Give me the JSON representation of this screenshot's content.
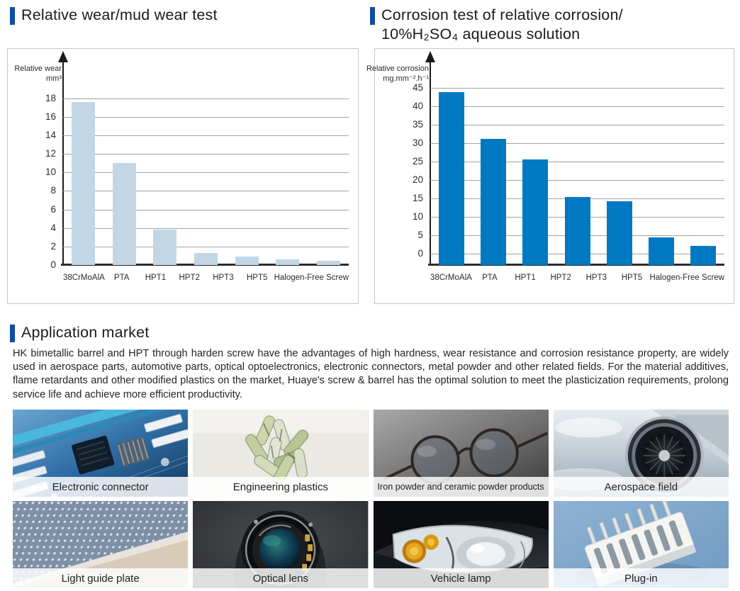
{
  "accent_color": "#0d4da2",
  "charts_section": {
    "left_title": "Relative wear/mud wear test",
    "right_title_line1": "Corrosion test of relative corrosion/",
    "right_title_line2": "10%H₂SO₄ aqueous solution"
  },
  "chart_data": [
    {
      "type": "bar",
      "title": "Relative wear/mud wear test",
      "ylabel_lines": [
        "Relative wear",
        "mm³"
      ],
      "categories": [
        "38CrMoAlA",
        "PTA",
        "HPT1",
        "HPT2",
        "HPT3",
        "HPT5",
        "Halogen-Free Screw"
      ],
      "values": [
        17.6,
        11.0,
        3.8,
        1.3,
        0.9,
        0.65,
        0.45
      ],
      "yticks": [
        0,
        2,
        4,
        6,
        8,
        10,
        12,
        14,
        16,
        18
      ],
      "ylim": [
        0,
        19.5
      ],
      "grid": true,
      "legend": "none",
      "bar_color": "#c2d6e5",
      "grid_color": "#a3a3a3",
      "axis_color": "#1b1b1b"
    },
    {
      "type": "bar",
      "title": "Corrosion test of relative corrosion/10%H₂SO₄ aqueous solution",
      "ylabel_lines": [
        "Relative corrosion",
        "mg.mm⁻².h⁻¹"
      ],
      "categories": [
        "38CrMoAlA",
        "PTA",
        "HPT1",
        "HPT2",
        "HPT3",
        "HPT5",
        "Halogen-Free Screw"
      ],
      "values": [
        43.8,
        31.2,
        25.6,
        15.4,
        14.3,
        4.5,
        2.2
      ],
      "yticks": [
        0,
        5,
        10,
        15,
        20,
        25,
        30,
        35,
        40,
        45
      ],
      "ylim": [
        -3,
        46
      ],
      "grid": true,
      "legend": "none",
      "bar_color": "#0079c2",
      "grid_color": "#a3a3a3",
      "axis_color": "#1b1b1b"
    }
  ],
  "application": {
    "heading": "Application market",
    "paragraph": "HK bimetallic barrel and HPT through harden screw have the advantages of high hardness, wear resistance and corrosion resistance property, are widely used in aerospace parts, automotive parts, optical optoelectronics, electronic connectors, metal powder and other related fields. For the material additives, flame retardants and other modified plastics on the market, Huaye's screw & barrel has the optimal solution to meet the plasticization requirements, prolong service life and achieve more efficient productivity.",
    "tiles": [
      {
        "caption": "Electronic connector",
        "image": "circuit-board-photo"
      },
      {
        "caption": "Engineering plastics",
        "image": "plastic-pellets-photo"
      },
      {
        "caption": "Iron powder and ceramic powder products",
        "image": "eyeglasses-on-metal-photo"
      },
      {
        "caption": "Aerospace field",
        "image": "jet-engine-photo"
      },
      {
        "caption": "Light guide plate",
        "image": "light-guide-plate-photo"
      },
      {
        "caption": "Optical lens",
        "image": "camera-lens-photo"
      },
      {
        "caption": "Vehicle lamp",
        "image": "car-headlight-photo"
      },
      {
        "caption": "Plug-in",
        "image": "white-connector-photo"
      }
    ]
  }
}
